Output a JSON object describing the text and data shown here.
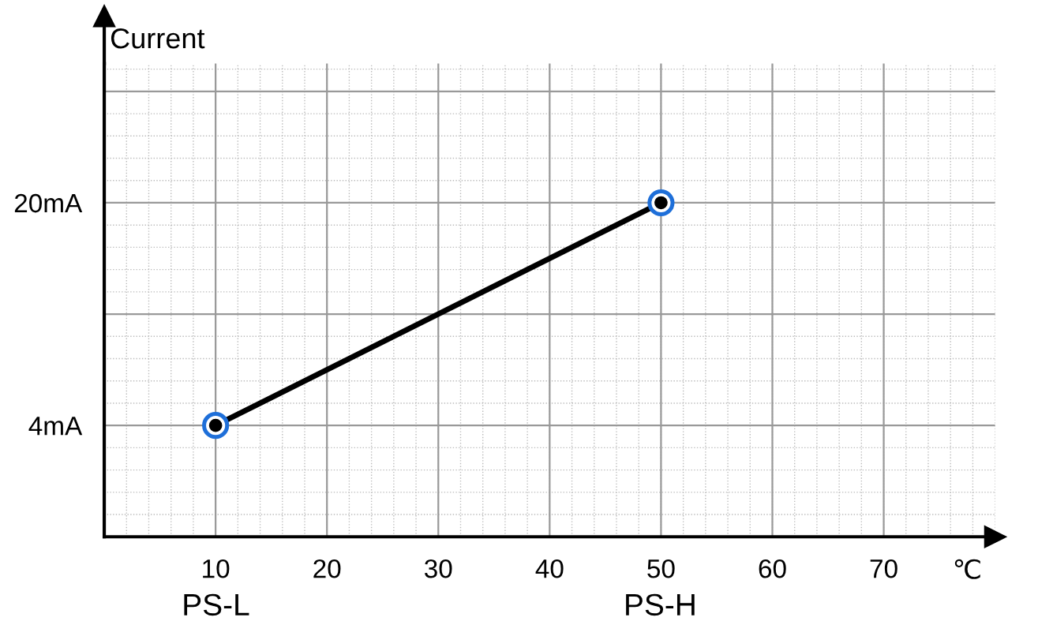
{
  "chart_data": {
    "type": "line",
    "xlabel": "℃",
    "ylabel": "Current",
    "x": [
      10,
      50
    ],
    "series": [
      {
        "color": "#000000",
        "colors": [
          "#1e6fd9",
          "#1e6fd9"
        ],
        "values": [
          4,
          20
        ]
      }
    ],
    "xlim": [
      0,
      80
    ],
    "ylim": [
      -4,
      30
    ],
    "xticks": [
      10,
      20,
      30,
      40,
      50,
      60,
      70
    ],
    "yticks": [
      {
        "value": 4,
        "label": "4mA"
      },
      {
        "value": 12,
        "label": null
      },
      {
        "value": 20,
        "label": "20mA"
      },
      {
        "value": 28,
        "label": null
      }
    ],
    "grid": true,
    "marker": "circle",
    "line_style": "solid",
    "annotations": [
      "PS-L",
      "PS-H"
    ]
  }
}
